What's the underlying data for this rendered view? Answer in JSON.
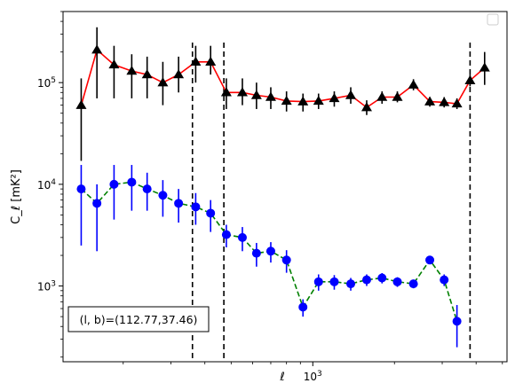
{
  "chart_data": {
    "type": "scatter",
    "xlabel": "ℓ",
    "ylabel": "C_ℓ  [mK²]",
    "xscale": "log",
    "yscale": "log",
    "xlim": [
      120,
      5200
    ],
    "ylim": [
      180,
      500000
    ],
    "x_tick_labels": [
      {
        "value": 1000,
        "base": "10",
        "exp": "3"
      }
    ],
    "y_tick_labels": [
      {
        "value": 1000,
        "base": "10",
        "exp": "3"
      },
      {
        "value": 10000,
        "base": "10",
        "exp": "4"
      },
      {
        "value": 100000,
        "base": "10",
        "exp": "5"
      }
    ],
    "vertical_lines": [
      360,
      470,
      3800
    ],
    "vertical_line_style": {
      "color": "#000000",
      "dash": "dashed"
    },
    "annotation": "(l, b)=(112.77,37.46)",
    "legend": {
      "position": "top-right",
      "entries": []
    },
    "series": [
      {
        "marker": "triangle",
        "marker_color": "#000000",
        "line_color": "#ff0000",
        "line_style": "solid",
        "error_color": "#000000",
        "points": [
          {
            "x": 140,
            "y": 60000,
            "lo": 17000,
            "hi": 110000
          },
          {
            "x": 160,
            "y": 210000,
            "lo": 70000,
            "hi": 350000
          },
          {
            "x": 185,
            "y": 150000,
            "lo": 70000,
            "hi": 230000
          },
          {
            "x": 215,
            "y": 130000,
            "lo": 70000,
            "hi": 190000
          },
          {
            "x": 245,
            "y": 120000,
            "lo": 70000,
            "hi": 180000
          },
          {
            "x": 280,
            "y": 100000,
            "lo": 60000,
            "hi": 160000
          },
          {
            "x": 320,
            "y": 120000,
            "lo": 80000,
            "hi": 180000
          },
          {
            "x": 370,
            "y": 160000,
            "lo": 100000,
            "hi": 230000
          },
          {
            "x": 420,
            "y": 160000,
            "lo": 120000,
            "hi": 230000
          },
          {
            "x": 480,
            "y": 80000,
            "lo": 55000,
            "hi": 110000
          },
          {
            "x": 550,
            "y": 80000,
            "lo": 60000,
            "hi": 110000
          },
          {
            "x": 620,
            "y": 75000,
            "lo": 55000,
            "hi": 100000
          },
          {
            "x": 700,
            "y": 72000,
            "lo": 55000,
            "hi": 90000
          },
          {
            "x": 800,
            "y": 66000,
            "lo": 52000,
            "hi": 82000
          },
          {
            "x": 920,
            "y": 65000,
            "lo": 52000,
            "hi": 78000
          },
          {
            "x": 1050,
            "y": 66000,
            "lo": 55000,
            "hi": 78000
          },
          {
            "x": 1200,
            "y": 70000,
            "lo": 58000,
            "hi": 82000
          },
          {
            "x": 1380,
            "y": 75000,
            "lo": 62000,
            "hi": 90000
          },
          {
            "x": 1580,
            "y": 57000,
            "lo": 48000,
            "hi": 67000
          },
          {
            "x": 1800,
            "y": 72000,
            "lo": 62000,
            "hi": 82000
          },
          {
            "x": 2050,
            "y": 72000,
            "lo": 64000,
            "hi": 82000
          },
          {
            "x": 2350,
            "y": 95000,
            "lo": 84000,
            "hi": 108000
          },
          {
            "x": 2700,
            "y": 65000,
            "lo": 58000,
            "hi": 72000
          },
          {
            "x": 3050,
            "y": 64000,
            "lo": 57000,
            "hi": 72000
          },
          {
            "x": 3400,
            "y": 62000,
            "lo": 55000,
            "hi": 70000
          },
          {
            "x": 3800,
            "y": 105000,
            "lo": 92000,
            "hi": 120000
          },
          {
            "x": 4300,
            "y": 140000,
            "lo": 95000,
            "hi": 200000
          }
        ]
      },
      {
        "marker": "circle",
        "marker_color": "#0000ff",
        "line_color": "#008000",
        "line_style": "dashed",
        "error_color": "#0000ff",
        "points": [
          {
            "x": 140,
            "y": 9000,
            "lo": 2500,
            "hi": 15500
          },
          {
            "x": 160,
            "y": 6500,
            "lo": 2200,
            "hi": 10000
          },
          {
            "x": 185,
            "y": 10000,
            "lo": 4500,
            "hi": 15500
          },
          {
            "x": 215,
            "y": 10500,
            "lo": 5500,
            "hi": 15500
          },
          {
            "x": 245,
            "y": 9000,
            "lo": 5500,
            "hi": 13000
          },
          {
            "x": 280,
            "y": 7800,
            "lo": 4800,
            "hi": 11000
          },
          {
            "x": 320,
            "y": 6500,
            "lo": 4200,
            "hi": 9000
          },
          {
            "x": 370,
            "y": 6000,
            "lo": 4000,
            "hi": 8200
          },
          {
            "x": 420,
            "y": 5200,
            "lo": 3400,
            "hi": 7000
          },
          {
            "x": 480,
            "y": 3200,
            "lo": 2400,
            "hi": 4000
          },
          {
            "x": 550,
            "y": 3000,
            "lo": 2200,
            "hi": 3800
          },
          {
            "x": 620,
            "y": 2100,
            "lo": 1550,
            "hi": 2650
          },
          {
            "x": 700,
            "y": 2200,
            "lo": 1700,
            "hi": 2700
          },
          {
            "x": 800,
            "y": 1800,
            "lo": 1350,
            "hi": 2250
          },
          {
            "x": 920,
            "y": 620,
            "lo": 500,
            "hi": 740
          },
          {
            "x": 1050,
            "y": 1100,
            "lo": 900,
            "hi": 1300
          },
          {
            "x": 1200,
            "y": 1100,
            "lo": 920,
            "hi": 1280
          },
          {
            "x": 1380,
            "y": 1050,
            "lo": 900,
            "hi": 1200
          },
          {
            "x": 1580,
            "y": 1150,
            "lo": 1000,
            "hi": 1300
          },
          {
            "x": 1800,
            "y": 1200,
            "lo": 1060,
            "hi": 1340
          },
          {
            "x": 2050,
            "y": 1100,
            "lo": 980,
            "hi": 1220
          },
          {
            "x": 2350,
            "y": 1050,
            "lo": 950,
            "hi": 1150
          },
          {
            "x": 2700,
            "y": 1800,
            "lo": 1650,
            "hi": 1950
          },
          {
            "x": 3050,
            "y": 1150,
            "lo": 1000,
            "hi": 1300
          },
          {
            "x": 3400,
            "y": 450,
            "lo": 250,
            "hi": 650
          }
        ]
      }
    ]
  }
}
